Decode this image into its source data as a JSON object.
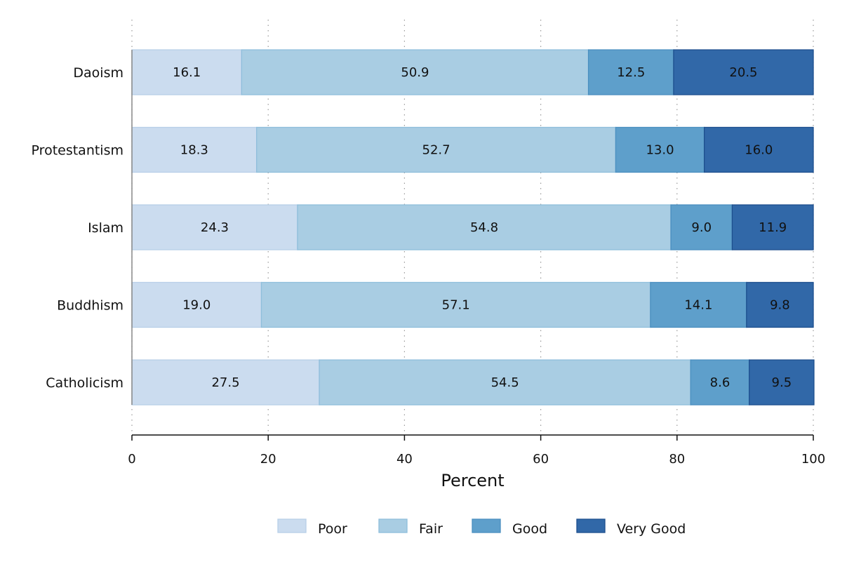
{
  "chart_data": {
    "type": "bar",
    "orientation": "horizontal",
    "stacked": true,
    "categories": [
      "Daoism",
      "Protestantism",
      "Islam",
      "Buddhism",
      "Catholicism"
    ],
    "series": [
      {
        "name": "Poor",
        "color": "#cbdcef",
        "border": "#b8cfe8",
        "values": [
          16.1,
          18.3,
          24.3,
          19.0,
          27.5
        ],
        "labels": [
          "16.1",
          "18.3",
          "24.3",
          "19.0",
          "27.5"
        ]
      },
      {
        "name": "Fair",
        "color": "#a9cde3",
        "border": "#8fbedb",
        "values": [
          50.9,
          52.7,
          54.8,
          57.1,
          54.5
        ],
        "labels": [
          "50.9",
          "52.7",
          "54.8",
          "57.1",
          "54.5"
        ]
      },
      {
        "name": "Good",
        "color": "#5e9fcb",
        "border": "#4a8fc0",
        "values": [
          12.5,
          13.0,
          9.0,
          14.1,
          8.6
        ],
        "labels": [
          "12.5",
          "13.0",
          "9.0",
          "14.1",
          "8.6"
        ]
      },
      {
        "name": "Very Good",
        "color": "#3168a8",
        "border": "#1d4f8e",
        "values": [
          20.5,
          16.0,
          11.9,
          9.8,
          9.5
        ],
        "labels": [
          "20.5",
          "16.0",
          "11.9",
          "9.8",
          "9.5"
        ]
      }
    ],
    "xlabel": "Percent",
    "xlim": [
      0,
      100
    ],
    "xticks": [
      0,
      20,
      40,
      60,
      80,
      100
    ],
    "xtick_labels": [
      "0",
      "20",
      "40",
      "60",
      "80",
      "100"
    ],
    "grid": "vertical dotted",
    "legend": "bottom"
  }
}
